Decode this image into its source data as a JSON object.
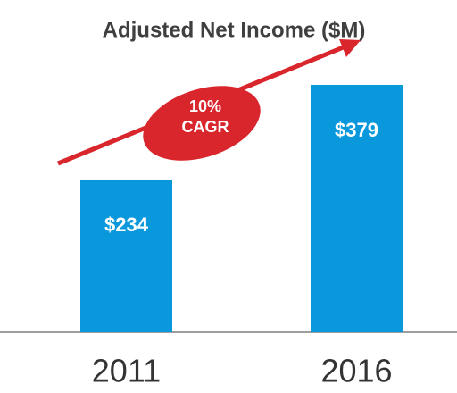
{
  "chart_data": {
    "type": "bar",
    "title": "Adjusted Net Income ($M)",
    "categories": [
      "2011",
      "2016"
    ],
    "values": [
      234,
      379
    ],
    "value_labels": [
      "$234",
      "$379"
    ],
    "color": "#0a98dc",
    "annotation": [
      "10%",
      "CAGR"
    ],
    "annotation_color": "#d9262c"
  }
}
